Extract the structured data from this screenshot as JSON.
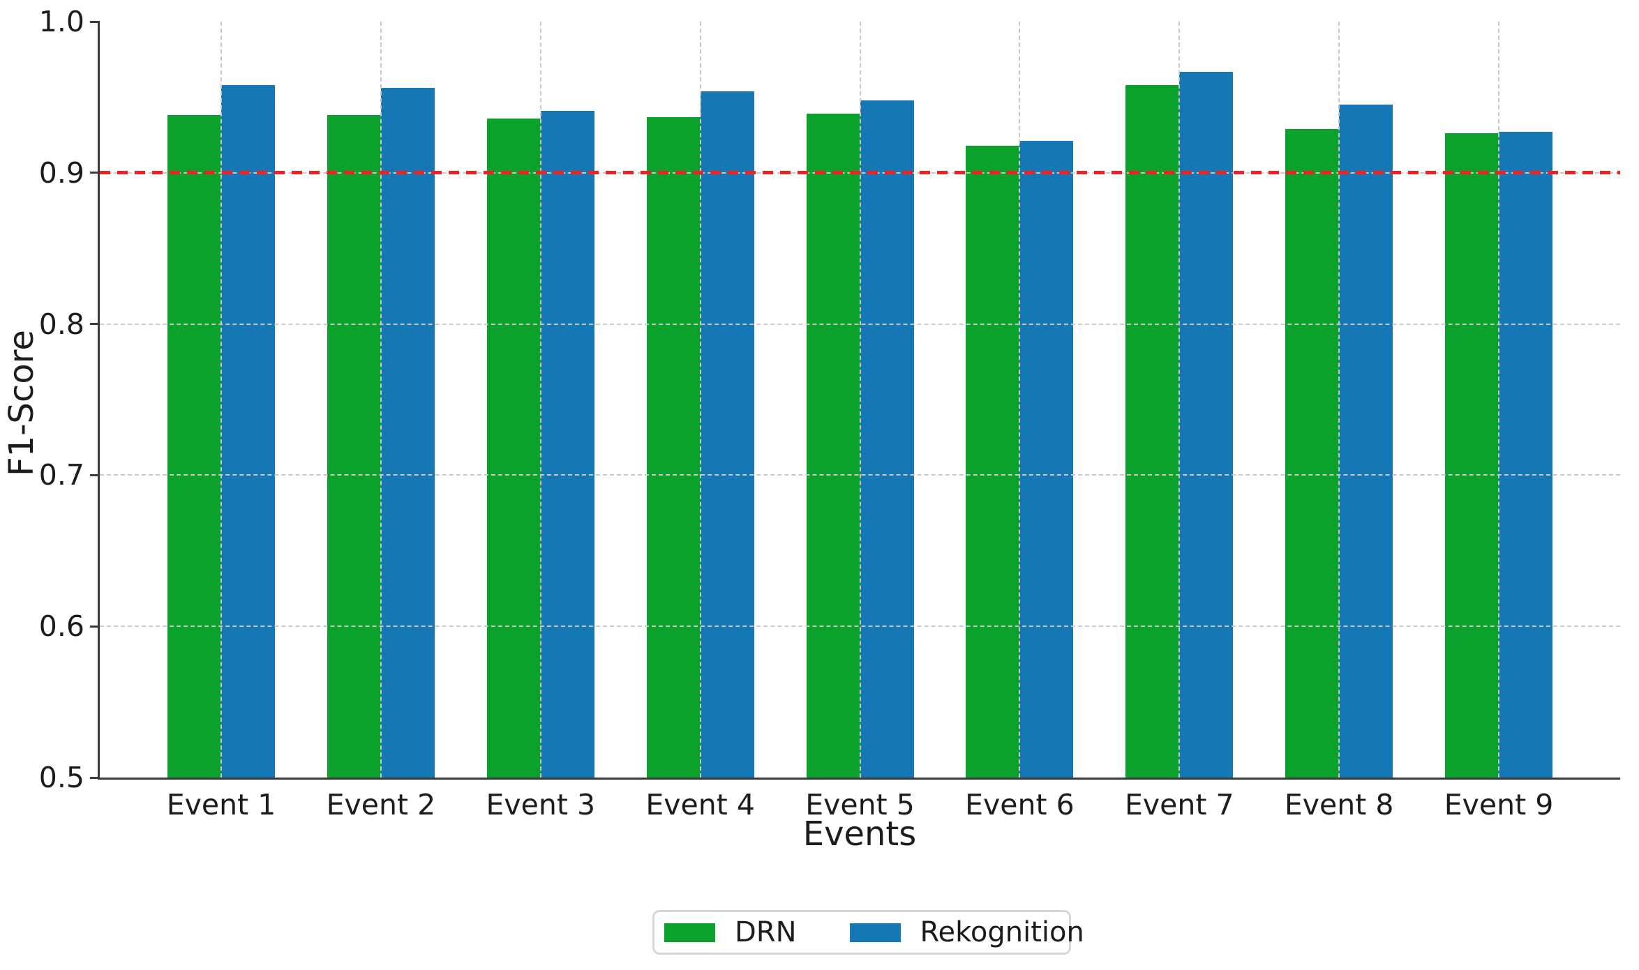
{
  "chart_data": {
    "type": "bar",
    "title": "",
    "categories": [
      "Event 1",
      "Event 2",
      "Event 3",
      "Event 4",
      "Event 5",
      "Event 6",
      "Event 7",
      "Event 8",
      "Event 9"
    ],
    "series": [
      {
        "name": "DRN",
        "color": "#0ba22c",
        "values": [
          0.938,
          0.938,
          0.936,
          0.937,
          0.939,
          0.918,
          0.958,
          0.929,
          0.926
        ]
      },
      {
        "name": "Rekognition",
        "color": "#1578b4",
        "values": [
          0.958,
          0.956,
          0.941,
          0.954,
          0.948,
          0.921,
          0.967,
          0.945,
          0.927
        ]
      }
    ],
    "xlabel": "Events",
    "ylabel": "F1-Score",
    "ylim": [
      0.5,
      1.0
    ],
    "yticks": [
      0.5,
      0.6,
      0.7,
      0.8,
      0.9,
      1.0
    ],
    "ytick_labels": [
      "0.5",
      "0.6",
      "0.7",
      "0.8",
      "0.9",
      "1.0"
    ],
    "threshold": {
      "value": 0.9,
      "color": "#ee2222"
    },
    "grid": true,
    "legend_position": "bottom",
    "axis_color": "#3a3a3a",
    "grid_color": "#c9c9c9",
    "text_color": "#1c1c1c",
    "background": "#ffffff"
  }
}
